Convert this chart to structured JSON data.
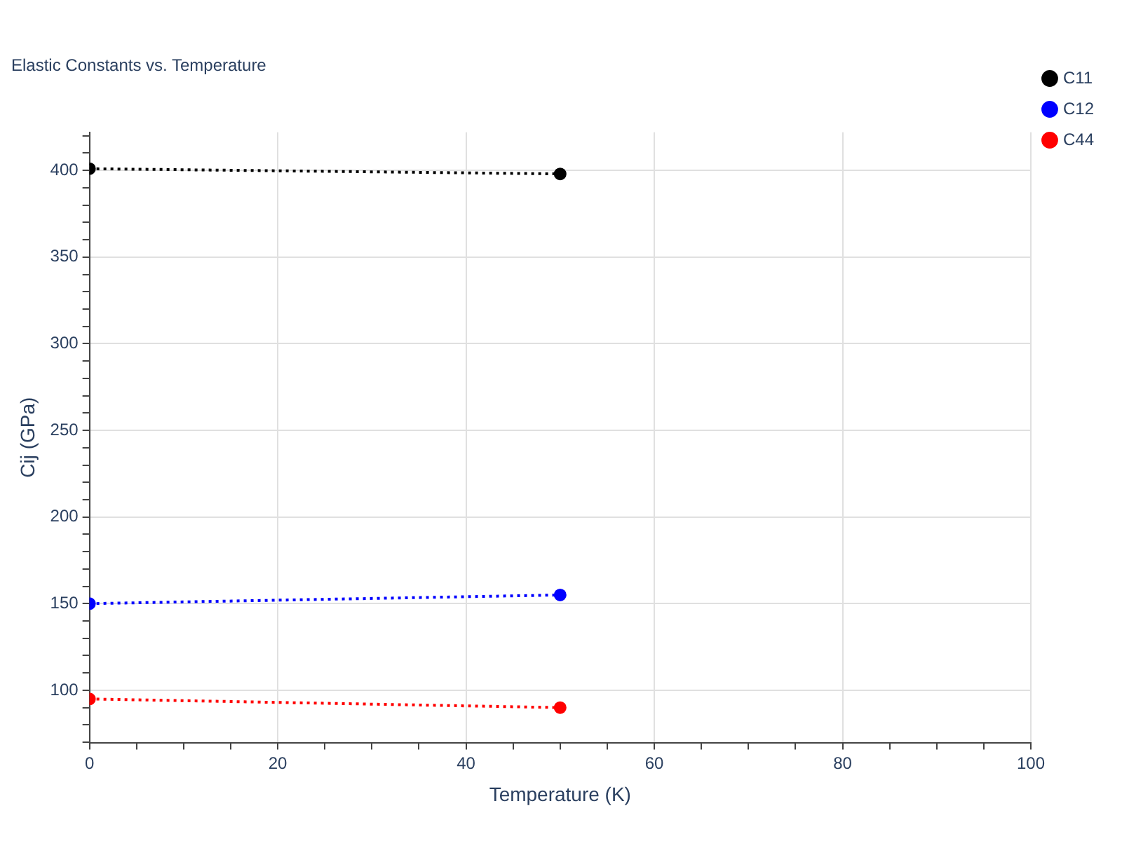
{
  "chart_data": {
    "type": "line",
    "title": "Elastic Constants vs. Temperature",
    "xlabel": "Temperature (K)",
    "ylabel": "Cij (GPa)",
    "x": [
      0,
      50
    ],
    "series": [
      {
        "name": "C11",
        "color": "#000000",
        "values": [
          401,
          398
        ]
      },
      {
        "name": "C12",
        "color": "#0000ff",
        "values": [
          150,
          155
        ]
      },
      {
        "name": "C44",
        "color": "#ff0000",
        "values": [
          95,
          90
        ]
      }
    ],
    "xlim": [
      0,
      100
    ],
    "xticks": [
      0,
      {
        "value": 5,
        "label": null
      },
      {
        "value": 10,
        "label": null
      },
      {
        "value": 15,
        "label": null
      },
      20,
      {
        "value": 25,
        "label": null
      },
      {
        "value": 30,
        "label": null
      },
      {
        "value": 35,
        "label": null
      },
      40,
      {
        "value": 45,
        "label": null
      },
      {
        "value": 50,
        "label": null
      },
      {
        "value": 55,
        "label": null
      },
      60,
      {
        "value": 65,
        "label": null
      },
      {
        "value": 70,
        "label": null
      },
      {
        "value": 75,
        "label": null
      },
      80,
      {
        "value": 85,
        "label": null
      },
      {
        "value": 90,
        "label": null
      },
      {
        "value": 95,
        "label": null
      },
      100
    ],
    "ylim": [
      69.8,
      422
    ],
    "yticks": [
      {
        "value": 70,
        "label": null
      },
      {
        "value": 80,
        "label": null
      },
      {
        "value": 90,
        "label": null
      },
      100,
      {
        "value": 110,
        "label": null
      },
      {
        "value": 120,
        "label": null
      },
      {
        "value": 130,
        "label": null
      },
      {
        "value": 140,
        "label": null
      },
      150,
      {
        "value": 160,
        "label": null
      },
      {
        "value": 170,
        "label": null
      },
      {
        "value": 180,
        "label": null
      },
      {
        "value": 190,
        "label": null
      },
      200,
      {
        "value": 210,
        "label": null
      },
      {
        "value": 220,
        "label": null
      },
      {
        "value": 230,
        "label": null
      },
      {
        "value": 240,
        "label": null
      },
      250,
      {
        "value": 260,
        "label": null
      },
      {
        "value": 270,
        "label": null
      },
      {
        "value": 280,
        "label": null
      },
      {
        "value": 290,
        "label": null
      },
      300,
      {
        "value": 310,
        "label": null
      },
      {
        "value": 320,
        "label": null
      },
      {
        "value": 330,
        "label": null
      },
      {
        "value": 340,
        "label": null
      },
      350,
      {
        "value": 360,
        "label": null
      },
      {
        "value": 370,
        "label": null
      },
      {
        "value": 380,
        "label": null
      },
      {
        "value": 390,
        "label": null
      },
      400,
      {
        "value": 410,
        "label": null
      },
      {
        "value": 420,
        "label": null
      }
    ],
    "grid": true,
    "legend": "top right",
    "marker": "circle",
    "line_style": "dotted"
  }
}
